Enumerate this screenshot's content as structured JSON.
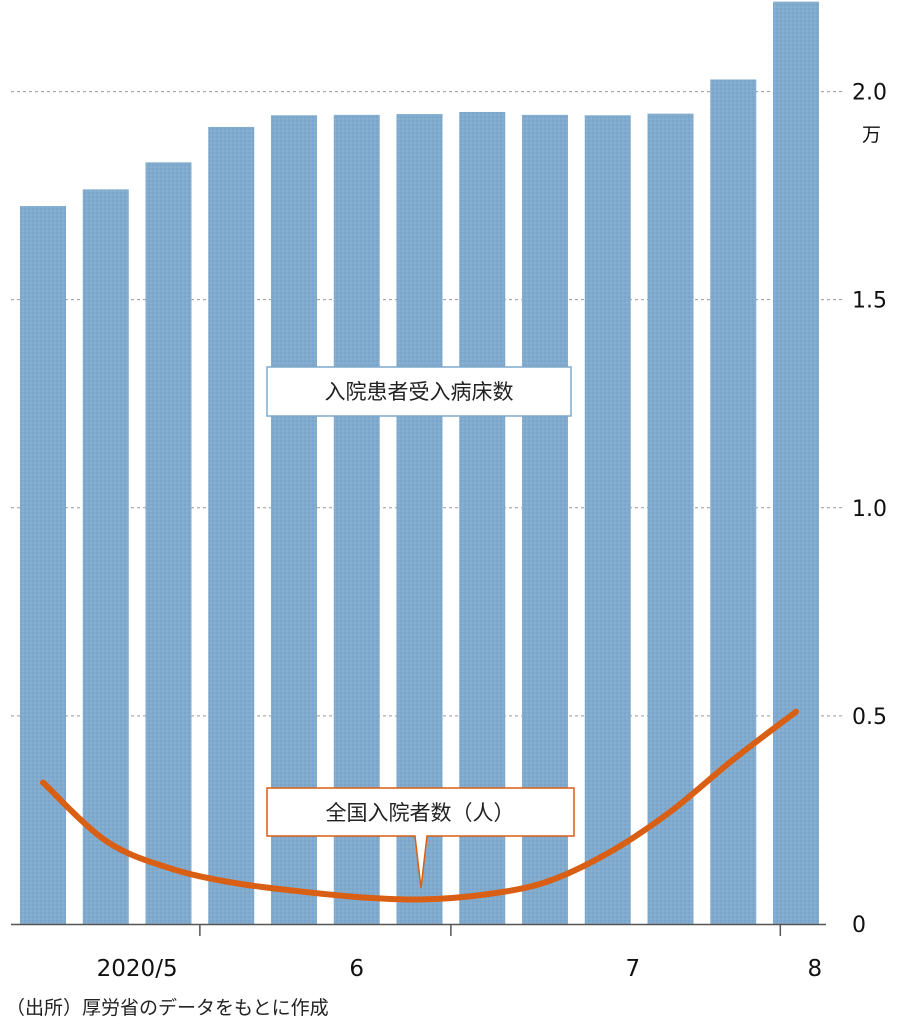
{
  "chart_data": {
    "type": "bar",
    "categories": [
      "",
      "",
      "",
      "",
      "",
      "",
      "",
      "",
      "",
      "",
      "",
      "",
      ""
    ],
    "series": [
      {
        "name": "入院患者受入病床数",
        "type": "bar",
        "axis": "y",
        "values": [
          17250,
          17650,
          18300,
          19150,
          19430,
          19440,
          19460,
          19510,
          19440,
          19430,
          19470,
          20290,
          22160
        ]
      },
      {
        "name": "全国入院者数（人）",
        "type": "line",
        "axis": "y",
        "values": [
          3400,
          2000,
          1350,
          1000,
          800,
          650,
          590,
          700,
          1000,
          1700,
          2700,
          3950,
          5100
        ]
      }
    ],
    "x_tick_labels": [
      {
        "label": "2020/5",
        "index": 1.5
      },
      {
        "label": "6",
        "index": 5
      },
      {
        "label": "7",
        "index": 9.4
      },
      {
        "label": "8",
        "index": 12.3
      }
    ],
    "x_separators": [
      2.5,
      6.5,
      11.75
    ],
    "y_axis": {
      "ticks": [
        0,
        5000,
        10000,
        15000,
        20000
      ],
      "tick_labels": [
        "0",
        "0.5",
        "1.0",
        "1.5",
        "2.0"
      ],
      "unit_label": "万",
      "ylim": [
        0,
        22200
      ],
      "gridlines": "dashed"
    },
    "annotations": {
      "bar_label": "入院患者受入病床数",
      "line_label": "全国入院者数（人）"
    },
    "colors": {
      "bar": "#7faacd",
      "line": "#d95f15",
      "grid": "#9a9a9a",
      "axis": "#555555"
    },
    "source": "（出所）厚労省のデータをもとに作成"
  }
}
